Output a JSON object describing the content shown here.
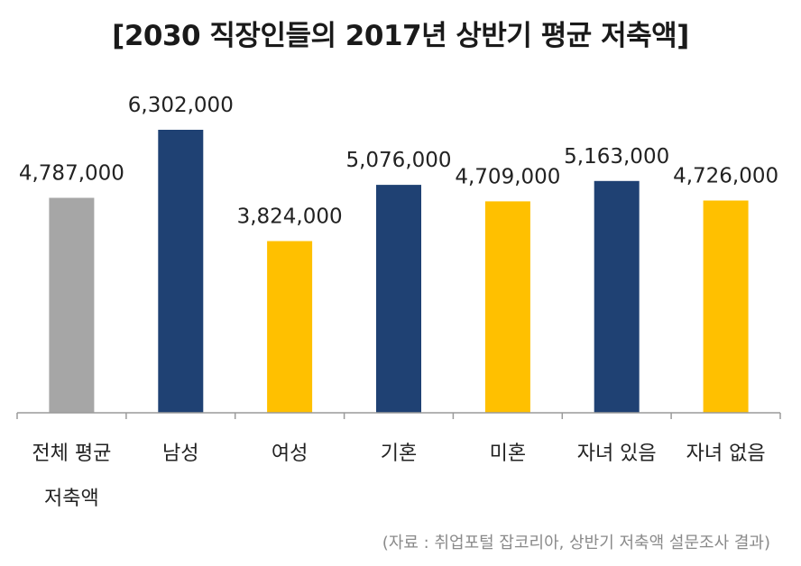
{
  "chart_data": {
    "type": "bar",
    "title": "[2030 직장인들의 2017년 상반기 평균 저축액]",
    "categories": [
      [
        "전체 평균",
        "저축액"
      ],
      [
        "남성"
      ],
      [
        "여성"
      ],
      [
        "기혼"
      ],
      [
        "미혼"
      ],
      [
        "자녀 있음"
      ],
      [
        "자녀 없음"
      ]
    ],
    "values": [
      4787000,
      6302000,
      3824000,
      5076000,
      4709000,
      5163000,
      4726000
    ],
    "value_labels": [
      "4,787,000",
      "6,302,000",
      "3,824,000",
      "5,076,000",
      "4,709,000",
      "5,163,000",
      "4,726,000"
    ],
    "bar_colors": [
      "#a6a6a6",
      "#1f4173",
      "#ffc000",
      "#1f4173",
      "#ffc000",
      "#1f4173",
      "#ffc000"
    ],
    "ylim": [
      0,
      7000000
    ],
    "xlabel": "",
    "ylabel": "",
    "grid": false,
    "legend": "none"
  },
  "source_note": "(자료 : 취업포털 잡코리아, 상반기 저축액 설문조사 결과)"
}
